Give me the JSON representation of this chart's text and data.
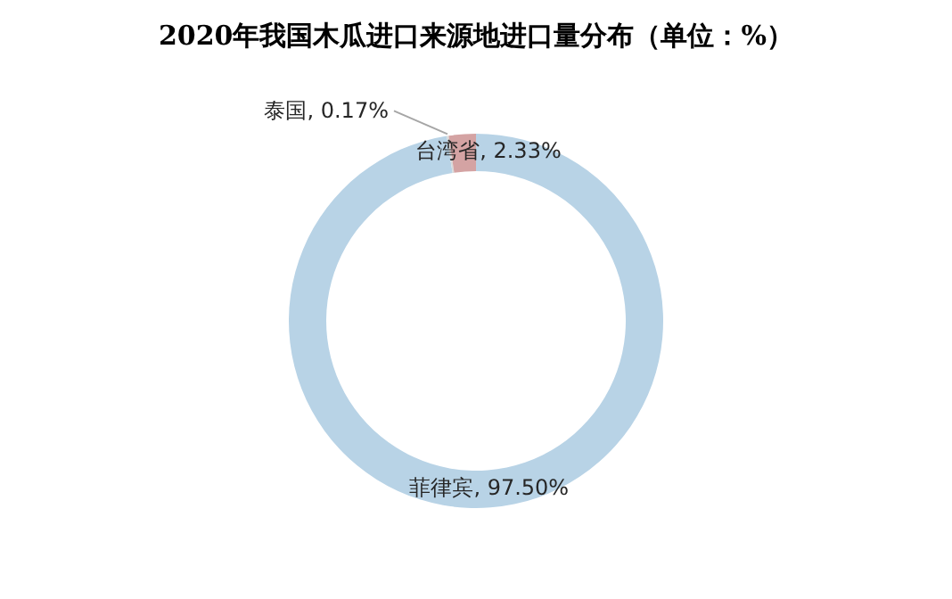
{
  "chart_data": {
    "type": "donut",
    "title": "2020年我国木瓜进口来源地进口量分布（单位：%）",
    "categories": [
      "菲律宾",
      "泰国",
      "台湾省"
    ],
    "values": [
      97.5,
      0.17,
      2.33
    ],
    "colors": [
      "#b8d3e6",
      "#d9d9d9",
      "#d4a3a3"
    ],
    "value_labels": [
      "97.50%",
      "0.17%",
      "2.33%"
    ]
  }
}
